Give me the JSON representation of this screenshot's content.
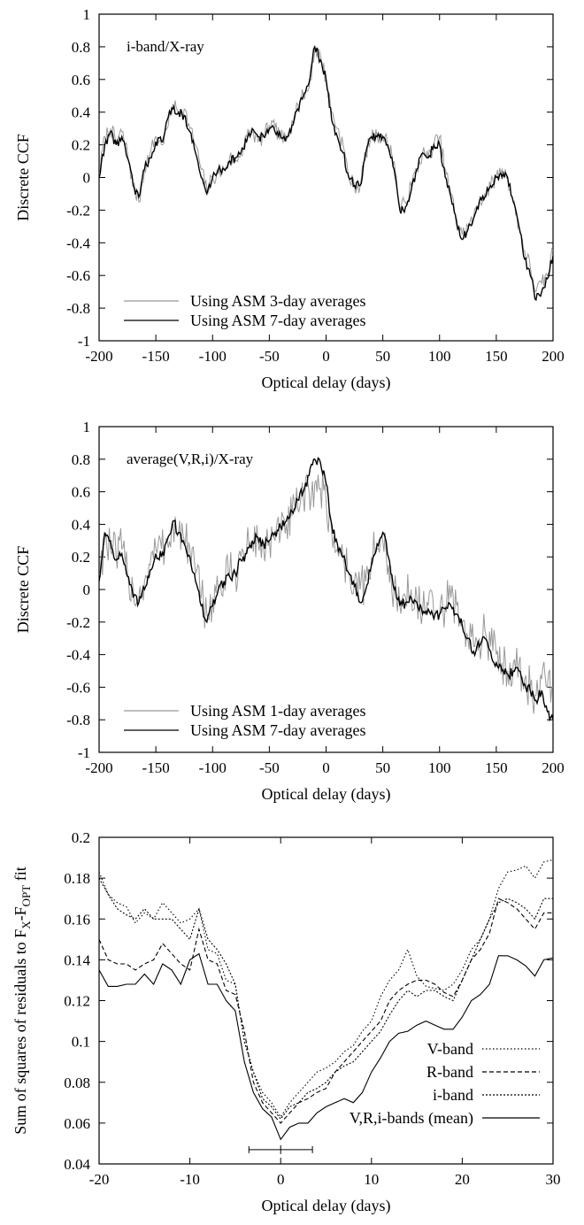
{
  "chart_data": [
    {
      "type": "line",
      "annotation": "i-band/X-ray",
      "xlabel": "Optical delay (days)",
      "ylabel": "Discrete CCF",
      "xlim": [
        -200,
        200
      ],
      "ylim": [
        -1,
        1
      ],
      "xticks": [
        -200,
        -150,
        -100,
        -50,
        0,
        50,
        100,
        150,
        200
      ],
      "yticks": [
        -1,
        -0.8,
        -0.6,
        -0.4,
        -0.2,
        0,
        0.2,
        0.4,
        0.6,
        0.8,
        1
      ],
      "legend_position": "bottom-left",
      "series": [
        {
          "name": "Using ASM 3-day averages",
          "color": "#999999",
          "noise": 0.05,
          "x": [
            -200,
            -195,
            -190,
            -185,
            -180,
            -175,
            -170,
            -165,
            -160,
            -155,
            -150,
            -145,
            -140,
            -135,
            -130,
            -125,
            -120,
            -115,
            -110,
            -105,
            -100,
            -95,
            -90,
            -85,
            -80,
            -75,
            -70,
            -65,
            -60,
            -55,
            -50,
            -45,
            -40,
            -35,
            -30,
            -25,
            -20,
            -15,
            -10,
            -5,
            0,
            5,
            10,
            15,
            20,
            25,
            30,
            35,
            40,
            45,
            50,
            55,
            60,
            65,
            70,
            75,
            80,
            85,
            90,
            95,
            100,
            105,
            110,
            115,
            120,
            125,
            130,
            135,
            140,
            145,
            150,
            155,
            160,
            165,
            170,
            175,
            180,
            185,
            190,
            195,
            200
          ],
          "values": [
            0.02,
            0.25,
            0.3,
            0.22,
            0.28,
            0.15,
            -0.05,
            -0.15,
            0.05,
            0.15,
            0.25,
            0.2,
            0.3,
            0.45,
            0.4,
            0.42,
            0.3,
            0.2,
            0.05,
            -0.08,
            0.0,
            0.02,
            0.05,
            0.12,
            0.1,
            0.15,
            0.25,
            0.28,
            0.22,
            0.25,
            0.32,
            0.3,
            0.25,
            0.22,
            0.35,
            0.45,
            0.5,
            0.55,
            0.78,
            0.75,
            0.6,
            0.4,
            0.3,
            0.2,
            0.0,
            -0.05,
            -0.05,
            0.15,
            0.25,
            0.25,
            0.26,
            0.2,
            0.1,
            -0.2,
            -0.15,
            -0.05,
            0.05,
            0.15,
            0.12,
            0.2,
            0.25,
            0.05,
            -0.1,
            -0.25,
            -0.35,
            -0.3,
            -0.25,
            -0.15,
            -0.1,
            -0.05,
            0.0,
            0.05,
            0.0,
            -0.15,
            -0.3,
            -0.45,
            -0.55,
            -0.7,
            -0.65,
            -0.6,
            -0.45
          ]
        },
        {
          "name": "Using ASM 7-day averages",
          "color": "#000000",
          "noise": 0.03,
          "x": [
            -200,
            -195,
            -190,
            -185,
            -180,
            -175,
            -170,
            -165,
            -160,
            -155,
            -150,
            -145,
            -140,
            -135,
            -130,
            -125,
            -120,
            -115,
            -110,
            -105,
            -100,
            -95,
            -90,
            -85,
            -80,
            -75,
            -70,
            -65,
            -60,
            -55,
            -50,
            -45,
            -40,
            -35,
            -30,
            -25,
            -20,
            -15,
            -10,
            -5,
            0,
            5,
            10,
            15,
            20,
            25,
            30,
            35,
            40,
            45,
            50,
            55,
            60,
            65,
            70,
            75,
            80,
            85,
            90,
            95,
            100,
            105,
            110,
            115,
            120,
            125,
            130,
            135,
            140,
            145,
            150,
            155,
            160,
            165,
            170,
            175,
            180,
            185,
            190,
            195,
            200
          ],
          "values": [
            0.0,
            0.2,
            0.28,
            0.2,
            0.25,
            0.12,
            -0.05,
            -0.12,
            0.05,
            0.12,
            0.22,
            0.22,
            0.35,
            0.42,
            0.4,
            0.38,
            0.28,
            0.15,
            0.0,
            -0.1,
            0.0,
            0.05,
            0.05,
            0.1,
            0.12,
            0.15,
            0.22,
            0.3,
            0.25,
            0.25,
            0.3,
            0.28,
            0.25,
            0.25,
            0.32,
            0.42,
            0.5,
            0.58,
            0.8,
            0.72,
            0.6,
            0.35,
            0.25,
            0.15,
            0.0,
            -0.05,
            -0.05,
            0.15,
            0.25,
            0.25,
            0.25,
            0.18,
            0.05,
            -0.2,
            -0.18,
            -0.08,
            0.05,
            0.15,
            0.12,
            0.2,
            0.2,
            0.0,
            -0.12,
            -0.28,
            -0.38,
            -0.32,
            -0.25,
            -0.15,
            -0.12,
            -0.05,
            0.0,
            0.0,
            0.0,
            -0.15,
            -0.3,
            -0.5,
            -0.6,
            -0.75,
            -0.7,
            -0.62,
            -0.48
          ]
        }
      ]
    },
    {
      "type": "line",
      "annotation": "average(V,R,i)/X-ray",
      "xlabel": "Optical delay (days)",
      "ylabel": "Discrete CCF",
      "xlim": [
        -200,
        200
      ],
      "ylim": [
        -1,
        1
      ],
      "xticks": [
        -200,
        -150,
        -100,
        -50,
        0,
        50,
        100,
        150,
        200
      ],
      "yticks": [
        -1,
        -0.8,
        -0.6,
        -0.4,
        -0.2,
        0,
        0.2,
        0.4,
        0.6,
        0.8,
        1
      ],
      "legend_position": "bottom-left",
      "series": [
        {
          "name": "Using ASM 1-day averages",
          "color": "#999999",
          "noise": 0.14,
          "x": [
            -200,
            -195,
            -190,
            -185,
            -180,
            -175,
            -170,
            -165,
            -160,
            -155,
            -150,
            -145,
            -140,
            -135,
            -130,
            -125,
            -120,
            -115,
            -110,
            -105,
            -100,
            -95,
            -90,
            -85,
            -80,
            -75,
            -70,
            -65,
            -60,
            -55,
            -50,
            -45,
            -40,
            -35,
            -30,
            -25,
            -20,
            -15,
            -10,
            -5,
            0,
            5,
            10,
            15,
            20,
            25,
            30,
            35,
            40,
            45,
            50,
            55,
            60,
            65,
            70,
            75,
            80,
            85,
            90,
            95,
            100,
            105,
            110,
            115,
            120,
            125,
            130,
            135,
            140,
            145,
            150,
            155,
            160,
            165,
            170,
            175,
            180,
            185,
            190,
            195,
            200
          ],
          "values": [
            0.1,
            0.3,
            0.25,
            0.2,
            0.25,
            0.1,
            0.0,
            -0.05,
            0.05,
            0.15,
            0.25,
            0.25,
            0.3,
            0.4,
            0.35,
            0.3,
            0.25,
            0.1,
            -0.05,
            -0.15,
            -0.05,
            0.0,
            0.05,
            0.1,
            0.1,
            0.2,
            0.25,
            0.3,
            0.3,
            0.25,
            0.3,
            0.3,
            0.35,
            0.4,
            0.45,
            0.5,
            0.55,
            0.6,
            0.65,
            0.62,
            0.55,
            0.35,
            0.25,
            0.2,
            0.1,
            0.05,
            0.0,
            0.05,
            0.2,
            0.25,
            0.3,
            0.15,
            0.0,
            -0.1,
            -0.05,
            0.0,
            -0.05,
            -0.15,
            -0.1,
            -0.15,
            -0.15,
            -0.1,
            -0.05,
            -0.1,
            -0.2,
            -0.3,
            -0.35,
            -0.3,
            -0.25,
            -0.35,
            -0.4,
            -0.45,
            -0.5,
            -0.45,
            -0.45,
            -0.55,
            -0.6,
            -0.65,
            -0.55,
            -0.6,
            -0.6
          ]
        },
        {
          "name": "Using ASM 7-day averages",
          "color": "#000000",
          "noise": 0.035,
          "x": [
            -200,
            -195,
            -190,
            -185,
            -180,
            -175,
            -170,
            -165,
            -160,
            -155,
            -150,
            -145,
            -140,
            -135,
            -130,
            -125,
            -120,
            -115,
            -110,
            -105,
            -100,
            -95,
            -90,
            -85,
            -80,
            -75,
            -70,
            -65,
            -60,
            -55,
            -50,
            -45,
            -40,
            -35,
            -30,
            -25,
            -20,
            -15,
            -10,
            -5,
            0,
            5,
            10,
            15,
            20,
            25,
            30,
            35,
            40,
            45,
            50,
            55,
            60,
            65,
            70,
            75,
            80,
            85,
            90,
            95,
            100,
            105,
            110,
            115,
            120,
            125,
            130,
            135,
            140,
            145,
            150,
            155,
            160,
            165,
            170,
            175,
            180,
            185,
            190,
            195,
            200
          ],
          "values": [
            0.05,
            0.35,
            0.3,
            0.18,
            0.22,
            0.08,
            -0.05,
            -0.08,
            0.0,
            0.12,
            0.22,
            0.2,
            0.3,
            0.42,
            0.35,
            0.28,
            0.2,
            0.05,
            -0.1,
            -0.2,
            -0.1,
            0.0,
            0.05,
            0.08,
            0.1,
            0.18,
            0.22,
            0.3,
            0.32,
            0.28,
            0.3,
            0.35,
            0.38,
            0.42,
            0.48,
            0.55,
            0.6,
            0.7,
            0.8,
            0.78,
            0.65,
            0.4,
            0.28,
            0.2,
            0.1,
            0.02,
            -0.08,
            0.0,
            0.15,
            0.28,
            0.35,
            0.2,
            0.0,
            -0.1,
            -0.08,
            -0.05,
            -0.08,
            -0.15,
            -0.12,
            -0.18,
            -0.15,
            -0.12,
            -0.1,
            -0.15,
            -0.22,
            -0.3,
            -0.38,
            -0.35,
            -0.3,
            -0.38,
            -0.45,
            -0.5,
            -0.52,
            -0.5,
            -0.5,
            -0.58,
            -0.62,
            -0.68,
            -0.62,
            -0.75,
            -0.8
          ]
        }
      ]
    },
    {
      "type": "line",
      "xlabel": "Optical delay (days)",
      "ylabel": "Sum of squares of residuals to F",
      "ylabel_sub1": "X",
      "ylabel_mid": "-F",
      "ylabel_sub2": "OPT",
      "ylabel_end": " fit",
      "xlim": [
        -20,
        30
      ],
      "ylim": [
        0.04,
        0.2
      ],
      "xticks": [
        -20,
        -10,
        0,
        10,
        20,
        30
      ],
      "yticks": [
        0.04,
        0.06,
        0.08,
        0.1,
        0.12,
        0.14,
        0.16,
        0.18,
        0.2
      ],
      "legend_position": "bottom-right",
      "errorbar": {
        "x": 0,
        "y": 0.047,
        "xerr_low": -3.5,
        "xerr_high": 3.5
      },
      "x": [
        -20,
        -19,
        -18,
        -17,
        -16,
        -15,
        -14,
        -13,
        -12,
        -11,
        -10,
        -9,
        -8,
        -7,
        -6,
        -5,
        -4,
        -3,
        -2,
        -1,
        0,
        1,
        2,
        3,
        4,
        5,
        6,
        7,
        8,
        9,
        10,
        11,
        12,
        13,
        14,
        15,
        16,
        17,
        18,
        19,
        20,
        21,
        22,
        23,
        24,
        25,
        26,
        27,
        28,
        29,
        30
      ],
      "series": [
        {
          "name": "V-band",
          "dash": "1.5,2.5",
          "values": [
            0.183,
            0.172,
            0.168,
            0.166,
            0.158,
            0.163,
            0.16,
            0.168,
            0.163,
            0.158,
            0.16,
            0.165,
            0.145,
            0.143,
            0.13,
            0.128,
            0.1,
            0.085,
            0.075,
            0.07,
            0.063,
            0.07,
            0.075,
            0.08,
            0.085,
            0.087,
            0.09,
            0.095,
            0.098,
            0.105,
            0.11,
            0.122,
            0.13,
            0.135,
            0.145,
            0.132,
            0.127,
            0.126,
            0.125,
            0.128,
            0.135,
            0.145,
            0.15,
            0.16,
            0.175,
            0.183,
            0.184,
            0.186,
            0.18,
            0.188,
            0.189
          ]
        },
        {
          "name": "R-band",
          "dash": "5,3",
          "values": [
            0.15,
            0.14,
            0.138,
            0.138,
            0.135,
            0.138,
            0.14,
            0.148,
            0.143,
            0.138,
            0.135,
            0.155,
            0.14,
            0.138,
            0.125,
            0.123,
            0.105,
            0.08,
            0.07,
            0.065,
            0.06,
            0.065,
            0.07,
            0.072,
            0.075,
            0.077,
            0.085,
            0.09,
            0.095,
            0.1,
            0.105,
            0.11,
            0.12,
            0.125,
            0.128,
            0.13,
            0.13,
            0.128,
            0.124,
            0.122,
            0.13,
            0.14,
            0.145,
            0.153,
            0.17,
            0.168,
            0.165,
            0.16,
            0.155,
            0.163,
            0.163
          ]
        },
        {
          "name": "i-band",
          "dash": "2,2",
          "values": [
            0.18,
            0.172,
            0.165,
            0.162,
            0.16,
            0.165,
            0.16,
            0.16,
            0.16,
            0.155,
            0.15,
            0.165,
            0.15,
            0.145,
            0.138,
            0.128,
            0.1,
            0.085,
            0.072,
            0.068,
            0.062,
            0.068,
            0.07,
            0.075,
            0.077,
            0.08,
            0.085,
            0.088,
            0.09,
            0.095,
            0.1,
            0.105,
            0.113,
            0.12,
            0.125,
            0.122,
            0.125,
            0.125,
            0.122,
            0.12,
            0.13,
            0.14,
            0.15,
            0.16,
            0.168,
            0.17,
            0.168,
            0.165,
            0.16,
            0.17,
            0.17
          ]
        },
        {
          "name": "V,R,i-bands (mean)",
          "dash": "",
          "values": [
            0.135,
            0.127,
            0.127,
            0.128,
            0.128,
            0.133,
            0.128,
            0.138,
            0.135,
            0.128,
            0.14,
            0.143,
            0.128,
            0.128,
            0.12,
            0.115,
            0.09,
            0.075,
            0.067,
            0.063,
            0.052,
            0.058,
            0.06,
            0.06,
            0.065,
            0.068,
            0.07,
            0.072,
            0.07,
            0.075,
            0.085,
            0.092,
            0.1,
            0.104,
            0.105,
            0.108,
            0.11,
            0.108,
            0.106,
            0.106,
            0.112,
            0.12,
            0.123,
            0.128,
            0.142,
            0.142,
            0.14,
            0.137,
            0.132,
            0.14,
            0.141
          ]
        }
      ]
    }
  ]
}
